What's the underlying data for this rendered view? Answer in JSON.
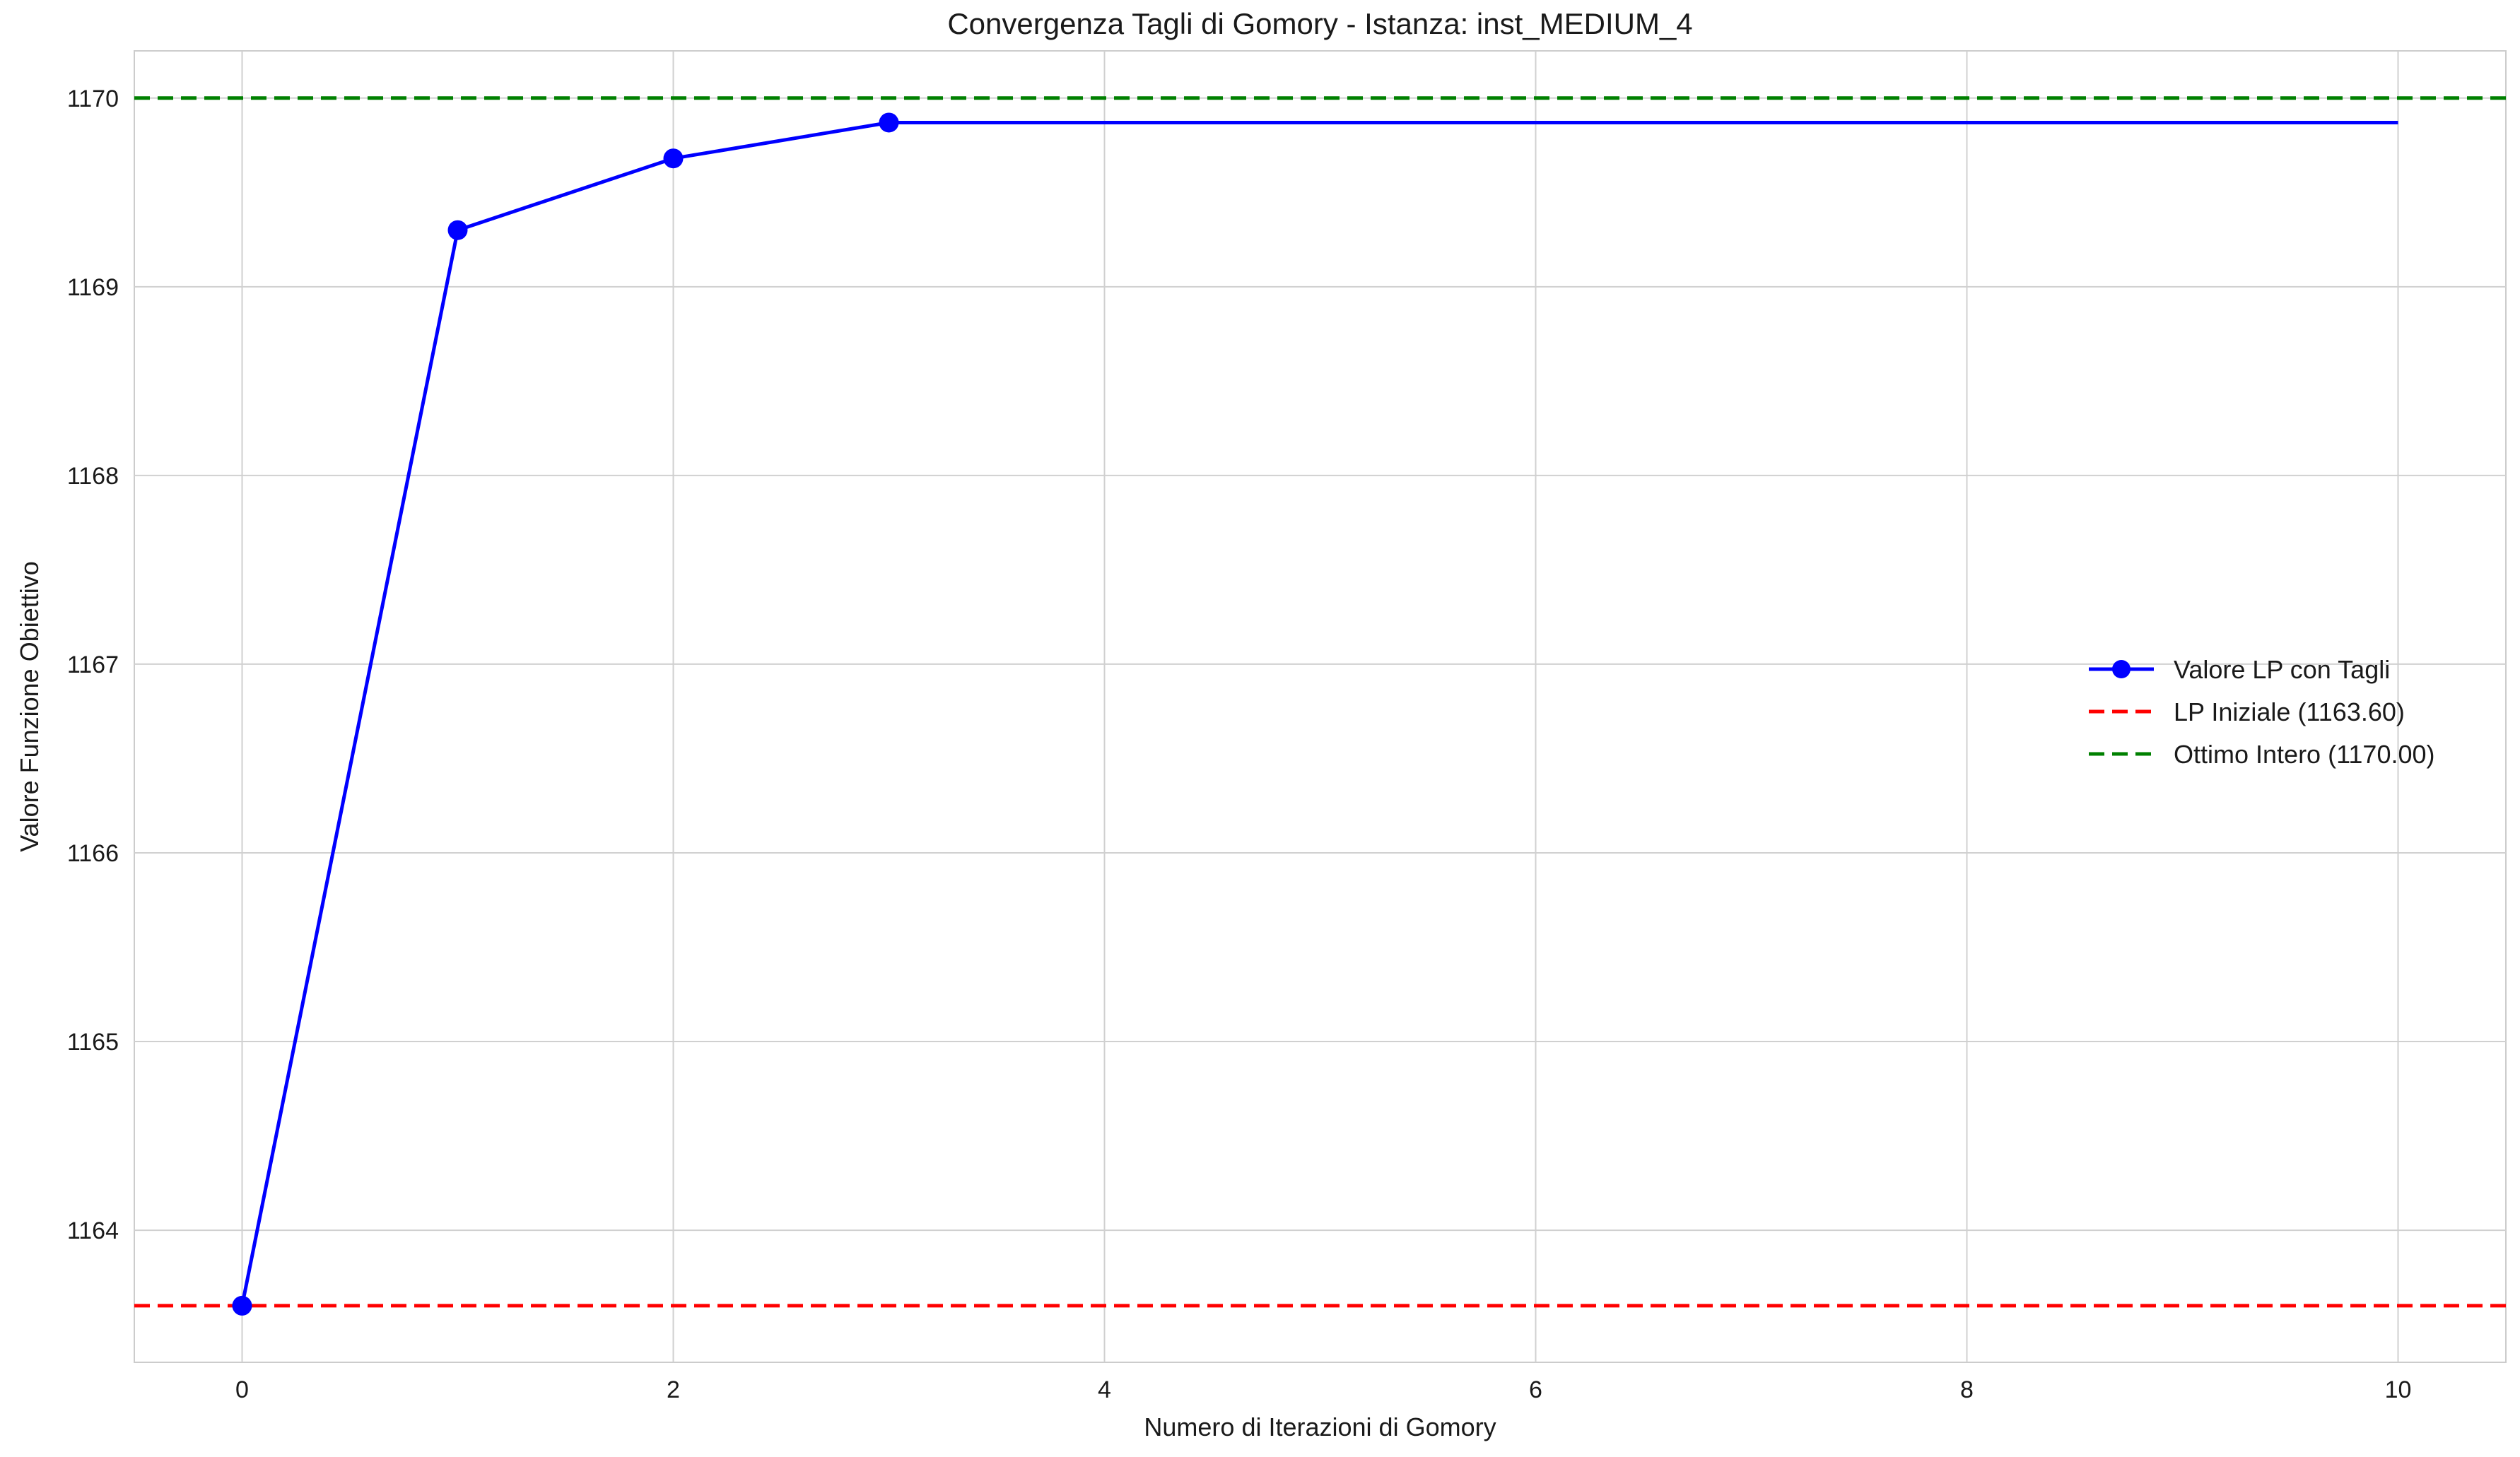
{
  "chart_data": {
    "type": "line",
    "title": "Convergenza Tagli di Gomory - Istanza: inst_MEDIUM_4",
    "xlabel": "Numero di Iterazioni di Gomory",
    "ylabel": "Valore Funzione Obiettivo",
    "xlim": [
      -0.5,
      10.5
    ],
    "ylim": [
      1163.3,
      1170.25
    ],
    "xticks": [
      0,
      2,
      4,
      6,
      8,
      10
    ],
    "yticks": [
      1164,
      1165,
      1166,
      1167,
      1168,
      1169,
      1170
    ],
    "grid": true,
    "legend_position": "center-right",
    "series": [
      {
        "name": "Valore LP con Tagli",
        "style": "solid-with-markers",
        "color": "#0000ff",
        "x": [
          0,
          1,
          2,
          3,
          10
        ],
        "y": [
          1163.6,
          1169.3,
          1169.68,
          1169.87,
          1169.87
        ],
        "markers": [
          0,
          1,
          2,
          3
        ]
      }
    ],
    "reference_lines": [
      {
        "name": "LP Iniziale (1163.60)",
        "y": 1163.6,
        "color": "#ff0000",
        "style": "dashed"
      },
      {
        "name": "Ottimo Intero (1170.00)",
        "y": 1170.0,
        "color": "#008000",
        "style": "dashed"
      }
    ]
  }
}
